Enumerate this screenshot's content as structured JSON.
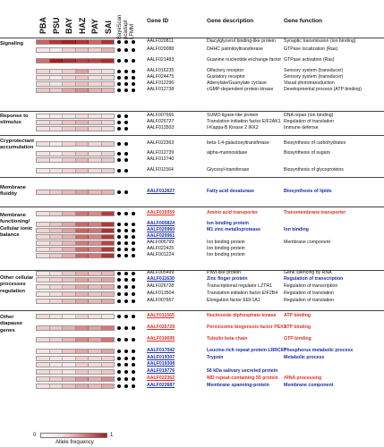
{
  "header": {
    "populations": [
      "PBA",
      "PSU",
      "BAY",
      "HAZ",
      "PAY",
      "SAI"
    ],
    "method_labels": [
      "BayeScan",
      "pcadapt",
      "LFMM"
    ],
    "gene_id": "Gene ID",
    "gene_description": "Gene description",
    "gene_function": "Gene function"
  },
  "categories": [
    {
      "label": "Signaling"
    },
    {
      "label": "Reponse to stimulus"
    },
    {
      "label": "Cryprotectant accumulation"
    },
    {
      "label": "Membrane fluidity"
    },
    {
      "label": "Membrane functioning/ Cellular ionic balance"
    },
    {
      "label": "Other cellular processes regulation"
    },
    {
      "label": "Other diapause genes"
    }
  ],
  "rows": [
    {
      "id": "AALF020811",
      "desc": "Diacylglycerol binding-like protein",
      "func": "Synaptic transmission (ion binding)",
      "color": "black",
      "heat": [
        "#d25d5d",
        "#b73232",
        "#aa1f1f",
        "#b83333",
        "#d26363",
        "#b33030"
      ],
      "dots": [
        1,
        1,
        1
      ]
    },
    {
      "id": "AALF020088",
      "desc": "DHHC palmitoyltransferase",
      "func": "GTPase localization (Ras)",
      "color": "black",
      "heat": [
        "#f7e6e6",
        "#f8eaea",
        "#f1cfcf",
        "#eec2c2",
        "#f1cfcf",
        "#e9b3b3"
      ],
      "dots": [
        1,
        1,
        1
      ]
    },
    {
      "id": "AALF021483",
      "desc": "Guanine nucleotide exchange factor",
      "func": "GTPase activation (Ras)",
      "color": "black",
      "heat": [
        "#d46a6a",
        "#a81e1e",
        "#b03030",
        "#c04040",
        "#be3f3f",
        "#b12b2b"
      ],
      "dots": [
        1,
        1,
        1
      ]
    },
    {
      "id": "AALF016235",
      "desc": "Olfactory receptor",
      "func": "Sensory system (transducer)",
      "color": "black",
      "heat": [
        "#f2d3d3",
        "#f4dcdc",
        "#f0cbcb",
        "#e2a0a0",
        "#f3d8d8",
        "#f4dcdc"
      ],
      "dots": [
        1,
        1,
        1
      ]
    },
    {
      "id": "AALF024475",
      "desc": "Gustatory receptor",
      "func": "Sensory system (transducer)",
      "color": "black",
      "heat": [
        "#f6e2e2",
        "#f8eaea",
        "#f2d5d5",
        "#eec4c4",
        "#f6e2e2",
        "#f5dede"
      ],
      "dots": [
        1,
        1,
        1
      ]
    },
    {
      "id": "AALF012296",
      "desc": "Adenylate/Guanylate cyclase",
      "func": "Visual phototransduction",
      "color": "black",
      "heat": [
        "#f4dcdc",
        "#f7e6e6",
        "#f1cece",
        "#eac0c0",
        "#f3d8d8",
        "#f2d5d5"
      ],
      "dots": [
        1,
        1,
        1
      ]
    },
    {
      "id": "AALF012738",
      "desc": "cGMP-dependent protein kinase",
      "func": "Developmental process (ATP binding)",
      "color": "black",
      "heat": [
        "#edc3c3",
        "#efc7c7",
        "#e3a4a4",
        "#db8e8e",
        "#e6afaf",
        "#e9b7b7"
      ],
      "dots": [
        1,
        1,
        1
      ]
    },
    {
      "id": "AALF007666",
      "desc": "SUMO ligase-like protein",
      "func": "DNA repair (ion binding)",
      "color": "black",
      "heat": [
        "#faf0f0",
        "#f8eaea",
        "#f6e4e4",
        "#f4dcdc",
        "#f6e2e2",
        "#f7e6e6"
      ],
      "dots": [
        1,
        1,
        0
      ]
    },
    {
      "id": "AALF026727",
      "desc": "Translation initiation factor EIF2AK1",
      "func": "Regulation of translation",
      "color": "black",
      "heat": [
        "#f4dada",
        "#f2d3d3",
        "#eec4c4",
        "#e7b3b3",
        "#f0caca",
        "#f3d6d6"
      ],
      "dots": [
        1,
        1,
        0
      ]
    },
    {
      "id": "AALF013503",
      "desc": "I-Kappa-B Kinase 2 IKK2",
      "func": "Immune defense",
      "color": "black",
      "heat": [
        "#f6e2e2",
        "#f5dede",
        "#f0cbcb",
        "#ecbfbf",
        "#f3d6d6",
        "#f5dcdc"
      ],
      "dots": [
        1,
        1,
        0
      ]
    },
    {
      "id": "AALF022363",
      "desc": "beta-1,4-galactosyltransferase",
      "func": "Biosynthesis of carbohydrates",
      "color": "black",
      "heat": [
        "#f5dede",
        "#f7e6e6",
        "#f2d3d3",
        "#edc1c1",
        "#f3d8d8",
        "#f1cfcf"
      ],
      "dots": [
        1,
        1,
        0
      ]
    },
    {
      "id": "AALF012739",
      "desc": "alpha-mannosidase",
      "func": "Biosynthesis of sugars",
      "color": "black",
      "heat": [
        "#f6e2e2",
        "#f7e8e8",
        "#f3d6d6",
        "#efc7c7",
        "#f5dede",
        "#f2d3d3"
      ],
      "dots": [
        1,
        1,
        0
      ]
    },
    {
      "id": "AALF012740",
      "desc": "",
      "func": "",
      "color": "black",
      "heat": [
        "#f3d6d6",
        "#f6e2e2",
        "#f0cbcb",
        "#e9b7b7",
        "#f2d3d3",
        "#efc7c7"
      ],
      "dots": [
        1,
        1,
        0
      ]
    },
    {
      "id": "AALF011564",
      "desc": "Glycosyl-transferase",
      "func": "Biosynthesis of glycoproteins",
      "color": "black",
      "heat": [
        "#f7e6e6",
        "#f6e2e2",
        "#f2d5d5",
        "#eec4c4",
        "#f4dcdc",
        "#f1d0d0"
      ],
      "dots": [
        1,
        1,
        0
      ]
    },
    {
      "id": "AALF012627",
      "desc": "Fatty acid desaturase",
      "func": "Biosynthesis of lipids",
      "color": "blue",
      "heat": [
        "#f3d6d6",
        "#efc7c7",
        "#e9b7b7",
        "#e2a0a0",
        "#ebbbbb",
        "#e8b3b3"
      ],
      "dots": [
        1,
        1,
        0
      ]
    },
    {
      "id": "AALF016959",
      "desc": "Amino acid transporter",
      "func": "Transmembrane transporter",
      "color": "red",
      "heat": [
        "#f5dede",
        "#f1cfcf",
        "#e6afaf",
        "#d67373",
        "#dc8888",
        "#b83a3a"
      ],
      "dots": [
        1,
        1,
        1
      ]
    },
    {
      "id": "AALF005824",
      "desc": "Ion binding protein",
      "func": "",
      "color": "blue",
      "heat": [
        "#f3d8d8",
        "#edc1c1",
        "#e3a4a4",
        "#d26666",
        "#d97c7c",
        "#b53535"
      ],
      "dots": [
        1,
        1,
        1
      ]
    },
    {
      "id": "AALF020960",
      "desc": "M1 zinc metalloprotease",
      "func": "Ion binding",
      "color": "blue",
      "heat": [
        "#f2d3d3",
        "#ebbdbd",
        "#e2a0a0",
        "#cf5f5f",
        "#d67373",
        "#b03030"
      ],
      "dots": [
        1,
        1,
        1
      ]
    },
    {
      "id": "AALF020961",
      "desc": "",
      "func": "",
      "color": "blue",
      "heat": [
        "#f4dada",
        "#efc5c5",
        "#e6acac",
        "#d46a6a",
        "#da8181",
        "#b63737"
      ],
      "dots": [
        1,
        1,
        1
      ]
    },
    {
      "id": "AALF006799",
      "desc": "Ion binding protein",
      "func": "Membrane component",
      "color": "black",
      "heat": [
        "#f6e2e2",
        "#f1cfcf",
        "#e8b3b3",
        "#d87777",
        "#de8d8d",
        "#bc4040"
      ],
      "dots": [
        1,
        1,
        1
      ]
    },
    {
      "id": "AALF022425",
      "desc": "Ion binding protein",
      "func": "",
      "color": "black",
      "heat": [
        "#f5dede",
        "#f0cbcb",
        "#e6afaf",
        "#d46a6a",
        "#da8080",
        "#b63636"
      ],
      "dots": [
        1,
        1,
        1
      ]
    },
    {
      "id": "AALF001224",
      "desc": "Ion binding protein",
      "func": "",
      "color": "black",
      "heat": [
        "#f4dcdc",
        "#efc7c7",
        "#e4a8a8",
        "#d06262",
        "#d87777",
        "#b23131"
      ],
      "dots": [
        1,
        1,
        1
      ]
    },
    {
      "id": "AALF005499",
      "desc": "PIWI-like protein",
      "func": "Gene silencing by RNA",
      "color": "black",
      "heat": [
        "#f7e6e6",
        "#f4dcdc",
        "#eec4c4",
        "#e6afaf",
        "#edc1c1",
        "#e9b7b7"
      ],
      "dots": [
        1,
        1,
        1
      ]
    },
    {
      "id": "AALF011630",
      "desc": "Zinc finger protein",
      "func": "Regulation of transcription",
      "color": "blue",
      "heat": [
        "#f5dede",
        "#f1cfcf",
        "#eac0c0",
        "#e2a0a0",
        "#e8b3b3",
        "#e3a4a4"
      ],
      "dots": [
        1,
        1,
        1
      ]
    },
    {
      "id": "AALF026728",
      "desc": "Transcriptional regulator LZTR1",
      "func": "Regulation of transcription",
      "color": "black",
      "heat": [
        "#f6e4e4",
        "#f3d6d6",
        "#edc3c3",
        "#e4a8a8",
        "#ebbbbb",
        "#e6afaf"
      ],
      "dots": [
        1,
        1,
        1
      ]
    },
    {
      "id": "AALF013504",
      "desc": "Translation initiation factor EIF2B4",
      "func": "Regulation of translation",
      "color": "black",
      "heat": [
        "#f7e8e8",
        "#f4dada",
        "#efc7c7",
        "#e7b2b2",
        "#eec4c4",
        "#eab9b9"
      ],
      "dots": [
        1,
        1,
        1
      ]
    },
    {
      "id": "AALF007667",
      "desc": "Elongation factor EEF1A1",
      "func": "Regulation of translation",
      "color": "black",
      "heat": [
        "#f5dede",
        "#f2d3d3",
        "#ebbbbb",
        "#e3a4a4",
        "#e9b7b7",
        "#e4a8a8"
      ],
      "dots": [
        1,
        1,
        1
      ]
    },
    {
      "id": "AALF011565",
      "desc": "Nucleoside diphosphate kinase",
      "func": "ATP binding",
      "color": "red",
      "heat": [
        "#f3d8d8",
        "#f6e2e2",
        "#f8eaea",
        "#f1cfcf",
        "#f5dede",
        "#f7e6e6"
      ],
      "dots": [
        1,
        1,
        1
      ]
    },
    {
      "id": "AALF026729",
      "desc": "Peroxisome biogenesis factor PEX1",
      "func": "ATP binding",
      "color": "red",
      "heat": [
        "#efc7c7",
        "#eec4c4",
        "#e6afaf",
        "#dc8888",
        "#e2a0a0",
        "#d87777"
      ],
      "dots": [
        1,
        1,
        1
      ]
    },
    {
      "id": "AALF016695",
      "desc": "Tubulin beta chain",
      "func": "GTP binding",
      "color": "red",
      "heat": [
        "#f3d6d6",
        "#f0cbcb",
        "#e8b3b3",
        "#dc8888",
        "#e3a4a4",
        "#d67373"
      ],
      "dots": [
        1,
        1,
        1
      ]
    },
    {
      "id": "AALF017042",
      "desc": "Leucine-rich repeat protein LRRC67",
      "func": "Phosphorus metabolic process",
      "color": "blue",
      "heat": [
        "#f6e2e2",
        "#f3d8d8",
        "#edc1c1",
        "#e4a8a8",
        "#eac0c0",
        "#e3a4a4"
      ],
      "dots": [
        1,
        1,
        1
      ]
    },
    {
      "id": "AALF019307",
      "desc": "Trypsin",
      "func": "Metabolic process",
      "color": "blue",
      "heat": [
        "#f4dcdc",
        "#f6e2e2",
        "#f7e6e6",
        "#f0cbcb",
        "#f3d6d6",
        "#f1cfcf"
      ],
      "dots": [
        1,
        1,
        1
      ]
    },
    {
      "id": "AALF019308",
      "desc": "",
      "func": "",
      "color": "blue",
      "heat": [
        "#f5dede",
        "#f7e6e6",
        "#f8eaea",
        "#f1cfcf",
        "#f4dada",
        "#f2d3d3"
      ],
      "dots": [
        1,
        1,
        1
      ]
    },
    {
      "id": "AALF019776",
      "desc": "56 kDa salivary secreted protein",
      "func": "",
      "color": "blue",
      "heat": [
        "#f3d8d8",
        "#f5dede",
        "#f6e4e4",
        "#eec4c4",
        "#f2d3d3",
        "#efc7c7"
      ],
      "dots": [
        1,
        1,
        1
      ]
    },
    {
      "id": "AALF022362",
      "desc": "WD repeat-containing 55 protein",
      "func": "rRNA processing",
      "color": "red",
      "heat": [
        "#f2d3d3",
        "#f0cbcb",
        "#e9b7b7",
        "#df9494",
        "#e6afaf",
        "#dc8888"
      ],
      "dots": [
        1,
        1,
        1
      ]
    },
    {
      "id": "AALF022687",
      "desc": "Membrane spanning-protein",
      "func": "Membrane component",
      "color": "blue",
      "heat": [
        "#f5dede",
        "#f3d6d6",
        "#edc1c1",
        "#e6acac",
        "#ebbbbb",
        "#e4a8a8"
      ],
      "dots": [
        1,
        1,
        1
      ]
    }
  ],
  "legend": {
    "min": "0",
    "max": "1",
    "label": "Allele frequency"
  }
}
